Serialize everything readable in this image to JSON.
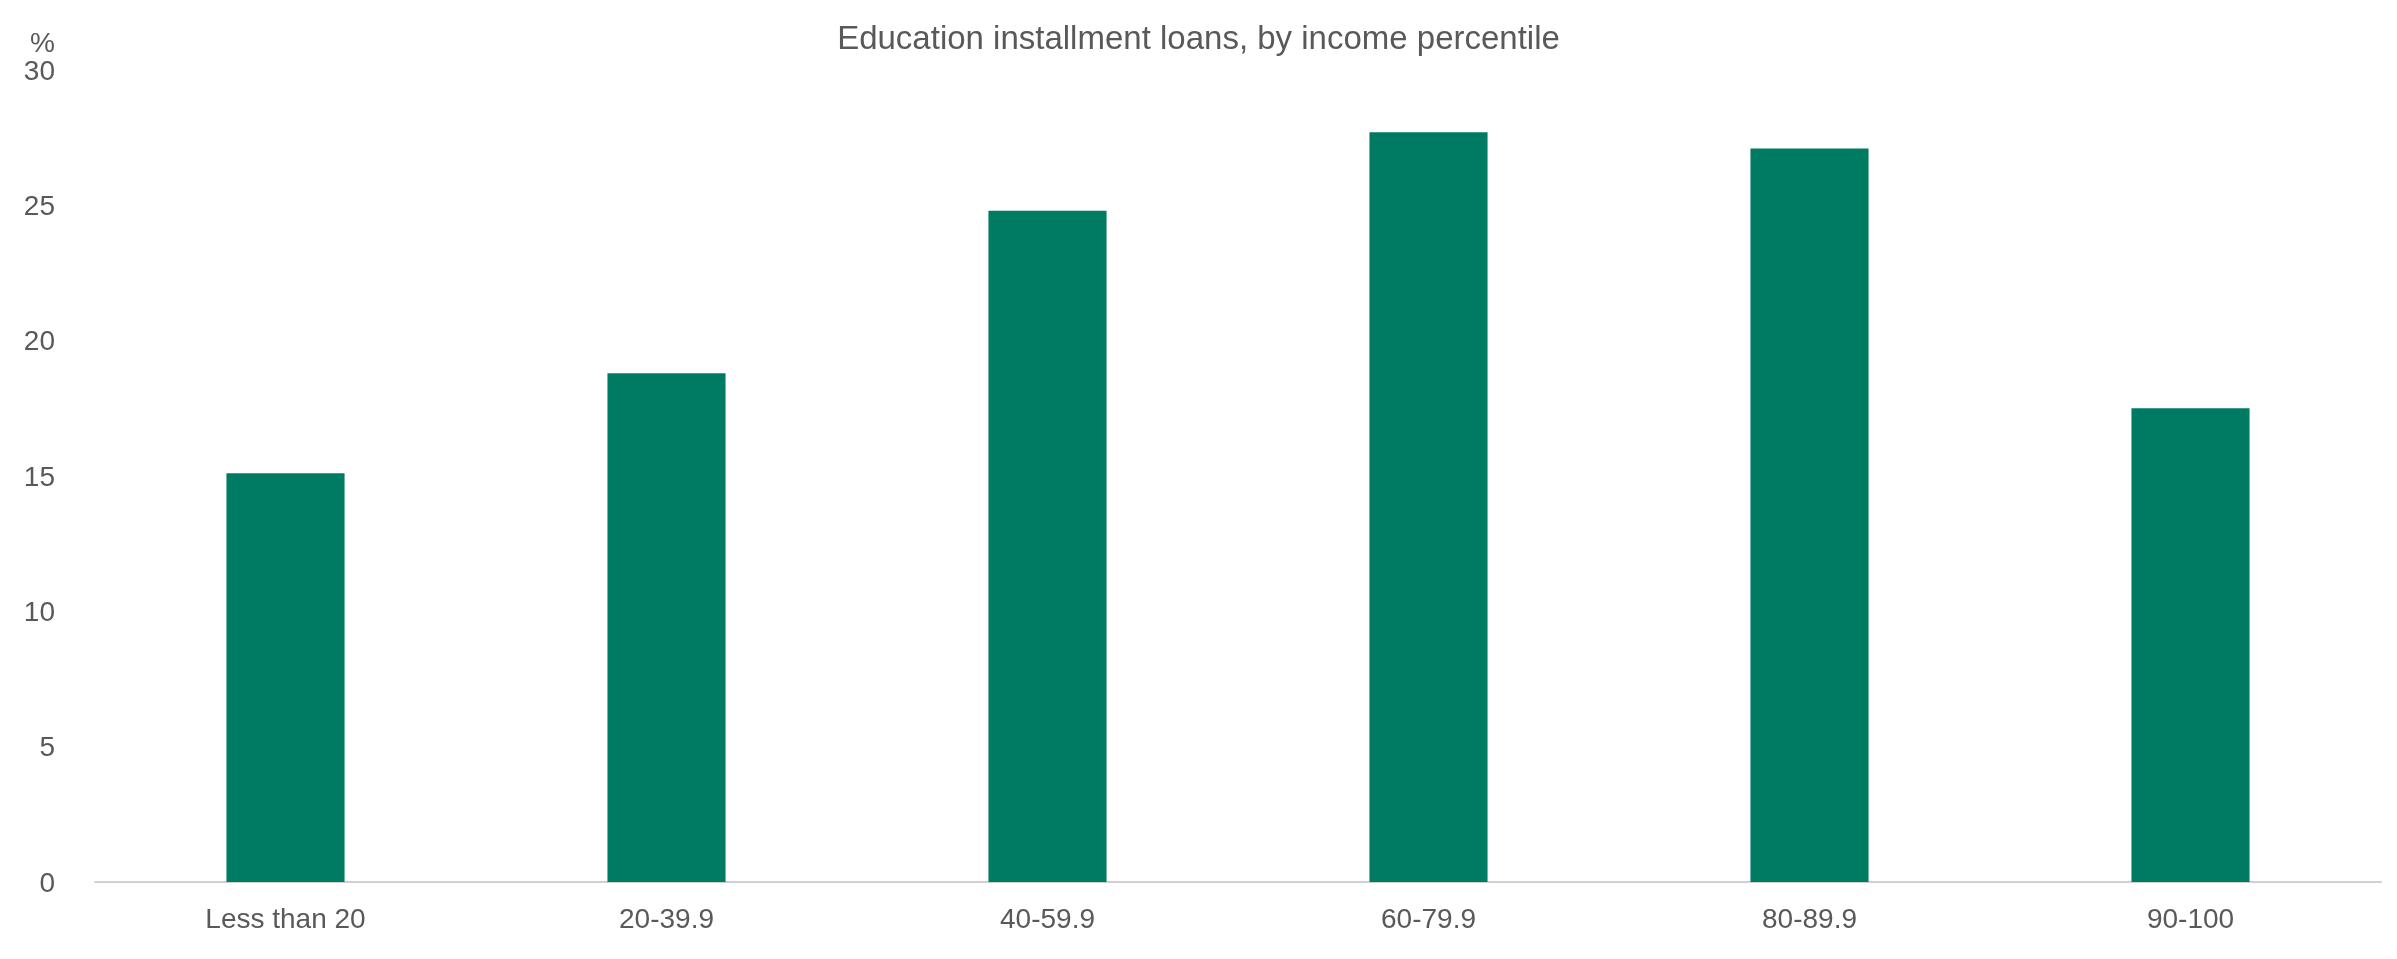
{
  "chart_data": {
    "type": "bar",
    "title": "Education installment loans, by income percentile",
    "ylabel": "%",
    "categories": [
      "Less than 20",
      "20-39.9",
      "40-59.9",
      "60-79.9",
      "80-89.9",
      "90-100"
    ],
    "values": [
      15.1,
      18.8,
      24.8,
      27.7,
      27.1,
      17.5
    ],
    "color": "#007b63",
    "ylim": [
      0,
      30
    ],
    "yticks": [
      0,
      5,
      10,
      15,
      20,
      25,
      30
    ],
    "grid": false
  }
}
